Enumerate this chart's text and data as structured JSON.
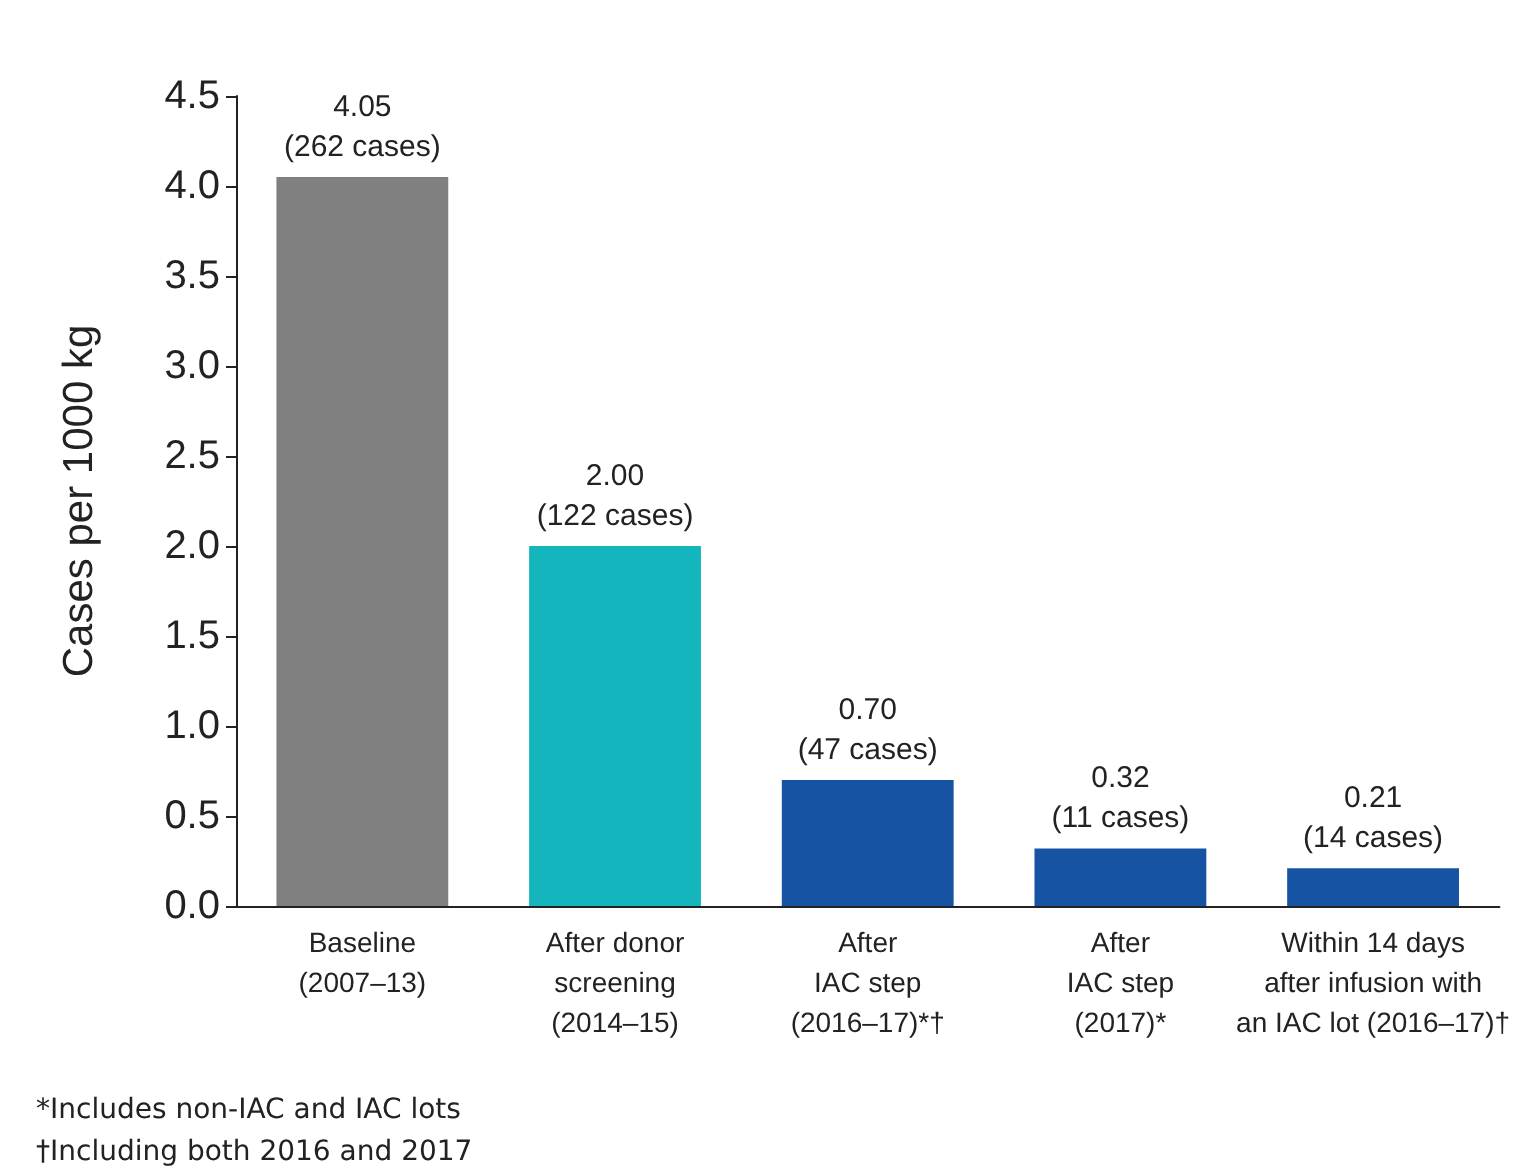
{
  "chart_data": {
    "type": "bar",
    "ylabel": "Cases per 1000 kg",
    "categories": [
      "Baseline\n(2007–13)",
      "After donor\nscreening\n(2014–15)",
      "After\nIAC step\n(2016–17)*†",
      "After\nIAC step\n(2017)*",
      "Within 14 days\nafter infusion with\nan IAC lot (2016–17)†"
    ],
    "values": [
      4.05,
      2.0,
      0.7,
      0.32,
      0.21
    ],
    "value_labels": [
      "4.05\n(262 cases)",
      "2.00\n(122 cases)",
      "0.70\n(47 cases)",
      "0.32\n(11 cases)",
      "0.21\n(14 cases)"
    ],
    "colors": [
      "#808080",
      "#14b5bd",
      "#1653a3",
      "#1653a3",
      "#1653a3"
    ],
    "ylim": [
      0,
      4.5
    ],
    "yticks": [
      {
        "value": 0,
        "label": "0.0"
      },
      0.5,
      {
        "value": 1,
        "label": "1.0"
      },
      1.5,
      {
        "value": 2,
        "label": "2.0"
      },
      2.5,
      {
        "value": 3,
        "label": "3.0"
      },
      3.5,
      {
        "value": 4,
        "label": "4.0"
      },
      4.5
    ],
    "annotations": [
      "*Includes non-IAC and IAC lots",
      "†Including both 2016 and 2017"
    ],
    "grid": false
  }
}
